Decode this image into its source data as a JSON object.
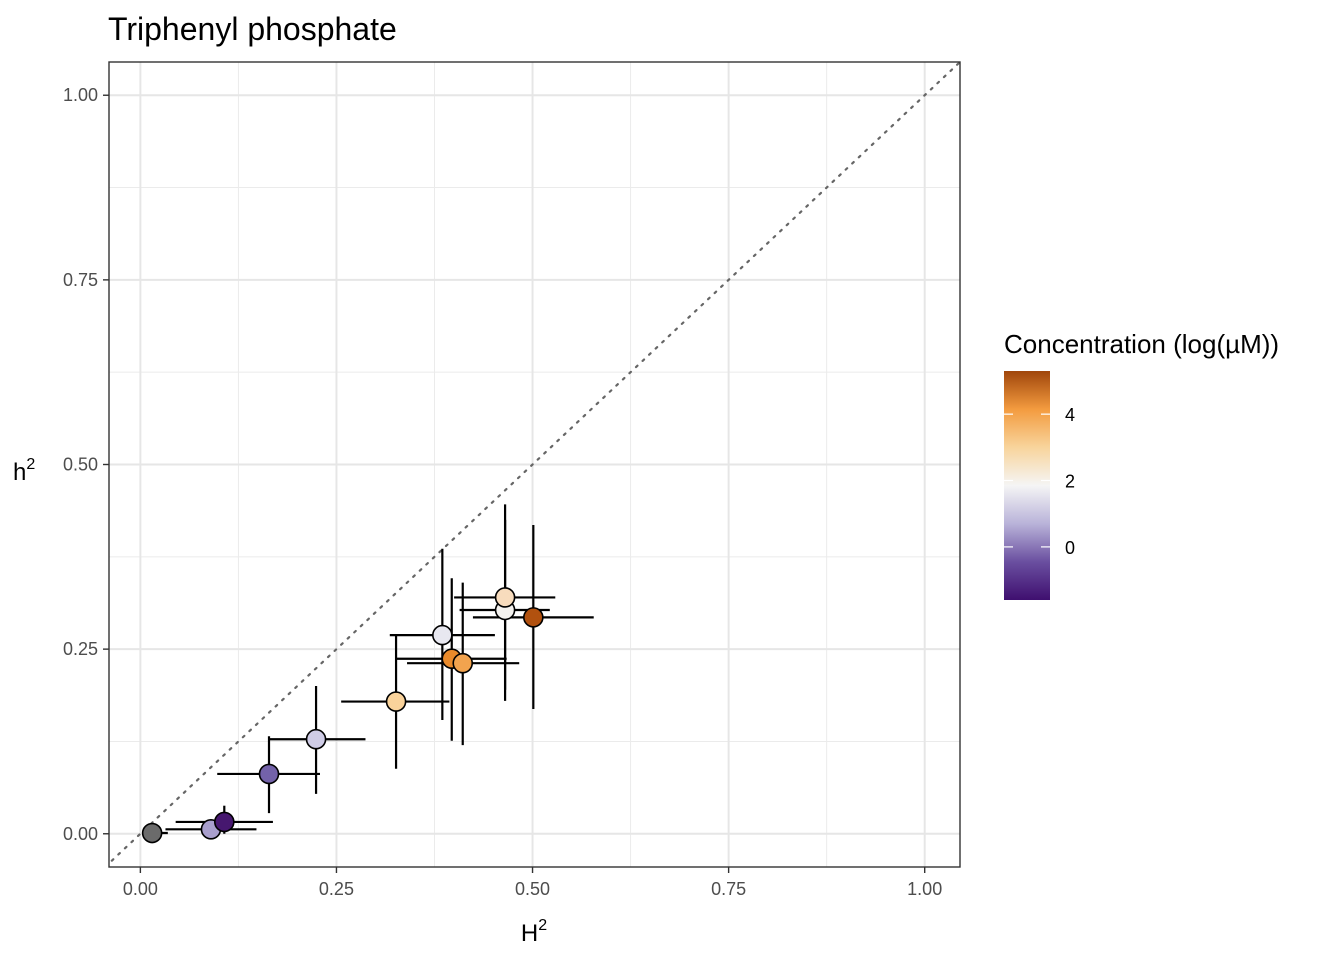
{
  "chart_data": {
    "type": "scatter",
    "title": "Triphenyl phosphate",
    "xlabel": {
      "base": "H",
      "sup": "2"
    },
    "ylabel": {
      "base": "h",
      "sup": "2"
    },
    "xlim": [
      -0.04,
      1.045
    ],
    "ylim": [
      -0.045,
      1.045
    ],
    "x_ticks": [
      {
        "value": 0.0,
        "label": "0.00"
      },
      {
        "value": 0.25,
        "label": "0.25"
      },
      {
        "value": 0.5,
        "label": "0.50"
      },
      {
        "value": 0.75,
        "label": "0.75"
      },
      {
        "value": 1.0,
        "label": "1.00"
      }
    ],
    "y_ticks": [
      {
        "value": 0.0,
        "label": "0.00"
      },
      {
        "value": 0.25,
        "label": "0.25"
      },
      {
        "value": 0.5,
        "label": "0.50"
      },
      {
        "value": 0.75,
        "label": "0.75"
      },
      {
        "value": 1.0,
        "label": "1.00"
      }
    ],
    "grid": true,
    "reference_line": {
      "slope": 1,
      "intercept": 0,
      "style": "dotted",
      "color": "#666666"
    },
    "legend": {
      "title": "Concentration (log(µM))",
      "placement": "right",
      "range": [
        -1.6,
        5.3
      ],
      "gradient": [
        "#3f0f6f",
        "#6a4fa0",
        "#b9b3d9",
        "#f5f5f5",
        "#f8d49c",
        "#f39b3f",
        "#a0460b"
      ],
      "ticks": [
        {
          "value": 0,
          "label": "0"
        },
        {
          "value": 2,
          "label": "2"
        },
        {
          "value": 4,
          "label": "4"
        }
      ]
    },
    "points": [
      {
        "x": 0.015,
        "y": 0.001,
        "x_lo": 0.005,
        "x_hi": 0.035,
        "y_lo": 0.0,
        "y_hi": 0.002,
        "color": "#6b6b6b"
      },
      {
        "x": 0.09,
        "y": 0.006,
        "x_lo": 0.032,
        "x_hi": 0.148,
        "y_lo": 0.001,
        "y_hi": 0.011,
        "color": "#a99fcd"
      },
      {
        "x": 0.107,
        "y": 0.016,
        "x_lo": 0.045,
        "x_hi": 0.169,
        "y_lo": 0.0,
        "y_hi": 0.038,
        "color": "#46176f"
      },
      {
        "x": 0.164,
        "y": 0.081,
        "x_lo": 0.098,
        "x_hi": 0.229,
        "y_lo": 0.028,
        "y_hi": 0.132,
        "color": "#7362a9"
      },
      {
        "x": 0.224,
        "y": 0.128,
        "x_lo": 0.163,
        "x_hi": 0.287,
        "y_lo": 0.054,
        "y_hi": 0.2,
        "color": "#cfcce6"
      },
      {
        "x": 0.326,
        "y": 0.179,
        "x_lo": 0.256,
        "x_hi": 0.394,
        "y_lo": 0.088,
        "y_hi": 0.27,
        "color": "#fad39b"
      },
      {
        "x": 0.385,
        "y": 0.269,
        "x_lo": 0.318,
        "x_hi": 0.452,
        "y_lo": 0.154,
        "y_hi": 0.386,
        "color": "#e8e8f0"
      },
      {
        "x": 0.397,
        "y": 0.237,
        "x_lo": 0.327,
        "x_hi": 0.467,
        "y_lo": 0.126,
        "y_hi": 0.346,
        "color": "#e98a2b"
      },
      {
        "x": 0.411,
        "y": 0.231,
        "x_lo": 0.34,
        "x_hi": 0.483,
        "y_lo": 0.12,
        "y_hi": 0.34,
        "color": "#f2a34e"
      },
      {
        "x": 0.465,
        "y": 0.303,
        "x_lo": 0.407,
        "x_hi": 0.522,
        "y_lo": 0.18,
        "y_hi": 0.425,
        "color": "#f4f2ef"
      },
      {
        "x": 0.465,
        "y": 0.32,
        "x_lo": 0.4,
        "x_hi": 0.529,
        "y_lo": 0.195,
        "y_hi": 0.446,
        "color": "#f8dcbd"
      },
      {
        "x": 0.501,
        "y": 0.293,
        "x_lo": 0.424,
        "x_hi": 0.578,
        "y_lo": 0.169,
        "y_hi": 0.418,
        "color": "#b1510f"
      }
    ]
  }
}
